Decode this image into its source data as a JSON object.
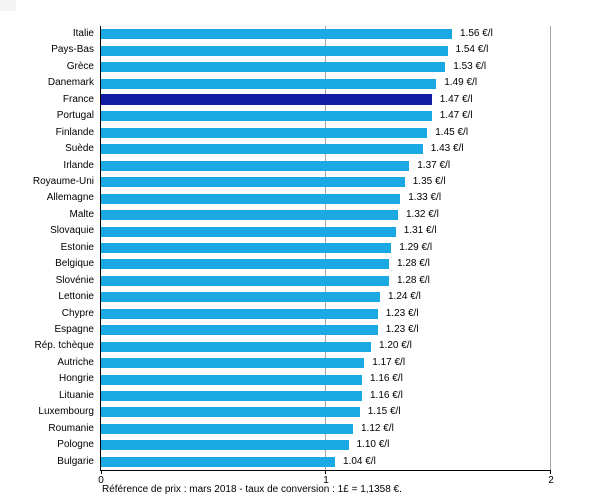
{
  "chart_data": {
    "type": "bar",
    "orientation": "horizontal",
    "title": "",
    "xlabel": "",
    "ylabel": "",
    "unit": "€/l",
    "categories": [
      "Italie",
      "Pays-Bas",
      "Grèce",
      "Danemark",
      "France",
      "Portugal",
      "Finlande",
      "Suède",
      "Irlande",
      "Royaume-Uni",
      "Allemagne",
      "Malte",
      "Slovaquie",
      "Estonie",
      "Belgique",
      "Slovénie",
      "Lettonie",
      "Chypre",
      "Espagne",
      "Rép. tchèque",
      "Autriche",
      "Hongrie",
      "Lituanie",
      "Luxembourg",
      "Roumanie",
      "Pologne",
      "Bulgarie"
    ],
    "values": [
      1.56,
      1.54,
      1.53,
      1.49,
      1.47,
      1.47,
      1.45,
      1.43,
      1.37,
      1.35,
      1.33,
      1.32,
      1.31,
      1.29,
      1.28,
      1.28,
      1.24,
      1.23,
      1.23,
      1.2,
      1.17,
      1.16,
      1.16,
      1.15,
      1.12,
      1.1,
      1.04
    ],
    "value_labels": [
      "1.56 €/l",
      "1.54 €/l",
      "1.53 €/l",
      "1.49 €/l",
      "1.47 €/l",
      "1.47 €/l",
      "1.45 €/l",
      "1.43 €/l",
      "1.37 €/l",
      "1.35 €/l",
      "1.33 €/l",
      "1.32 €/l",
      "1.31 €/l",
      "1.29 €/l",
      "1.28 €/l",
      "1.28 €/l",
      "1.24 €/l",
      "1.23 €/l",
      "1.23 €/l",
      "1.20 €/l",
      "1.17 €/l",
      "1.16 €/l",
      "1.16 €/l",
      "1.15 €/l",
      "1.12 €/l",
      "1.10 €/l",
      "1.04 €/l"
    ],
    "highlight_category": "France",
    "highlight_index": 4,
    "xlim": [
      0,
      2
    ],
    "x_ticks": [
      "0",
      "1",
      "2"
    ],
    "grid": "vertical major gridlines at 1 and 2",
    "legend": "none",
    "colors": {
      "bar": "#1BA9E4",
      "highlight": "#101CA4",
      "gridline": "#A6A6A6",
      "axis": "#000000"
    },
    "footnote": "Référence de prix : mars 2018 - taux de conversion : 1£ = 1,1358 €."
  }
}
